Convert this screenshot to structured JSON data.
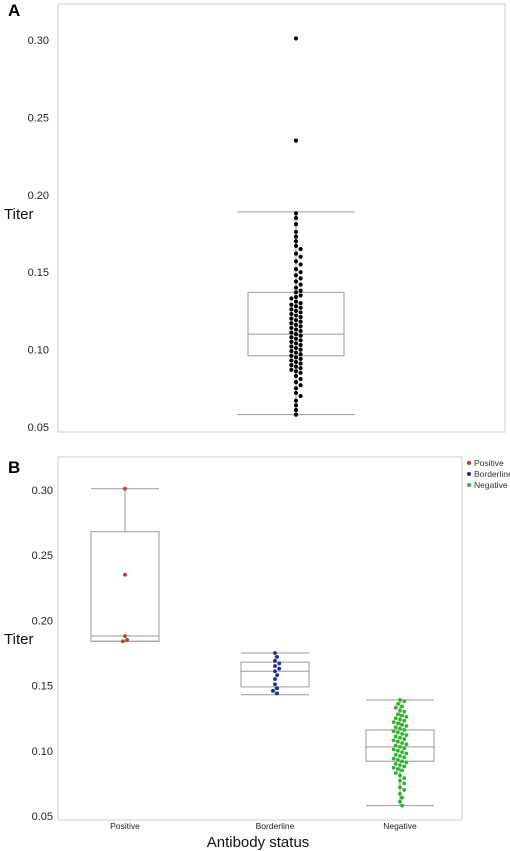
{
  "chart_data": [
    {
      "panel": "A",
      "type": "box-swarm",
      "ylabel": "Titer",
      "xlabel": "",
      "ylim": [
        0.05,
        0.31
      ],
      "yticks": [
        0.05,
        0.1,
        0.15,
        0.2,
        0.25,
        0.3
      ],
      "ytick_labels": [
        "0.05",
        "0.10",
        "0.15",
        "0.20",
        "0.25",
        "0.30"
      ],
      "grid": false,
      "box": {
        "min": 0.058,
        "q1": 0.096,
        "median": 0.11,
        "q3": 0.137,
        "max": 0.189
      },
      "point_color": "#000000",
      "values": [
        0.301,
        0.235,
        0.188,
        0.185,
        0.181,
        0.176,
        0.173,
        0.17,
        0.167,
        0.165,
        0.162,
        0.16,
        0.157,
        0.155,
        0.152,
        0.15,
        0.148,
        0.146,
        0.144,
        0.142,
        0.14,
        0.138,
        0.137,
        0.135,
        0.134,
        0.133,
        0.131,
        0.13,
        0.129,
        0.128,
        0.127,
        0.126,
        0.125,
        0.124,
        0.123,
        0.122,
        0.121,
        0.12,
        0.119,
        0.118,
        0.117,
        0.116,
        0.115,
        0.114,
        0.113,
        0.112,
        0.111,
        0.11,
        0.109,
        0.108,
        0.107,
        0.106,
        0.105,
        0.104,
        0.103,
        0.102,
        0.101,
        0.1,
        0.099,
        0.098,
        0.097,
        0.096,
        0.095,
        0.094,
        0.093,
        0.092,
        0.091,
        0.09,
        0.089,
        0.088,
        0.087,
        0.086,
        0.085,
        0.083,
        0.081,
        0.079,
        0.077,
        0.075,
        0.072,
        0.07,
        0.067,
        0.064,
        0.061,
        0.058
      ]
    },
    {
      "panel": "B",
      "type": "box-swarm",
      "ylabel": "Titer",
      "xlabel": "Antibody status",
      "ylim": [
        0.05,
        0.31
      ],
      "yticks": [
        0.05,
        0.1,
        0.15,
        0.2,
        0.25,
        0.3
      ],
      "ytick_labels": [
        "0.05",
        "0.10",
        "0.15",
        "0.20",
        "0.25",
        "0.30"
      ],
      "grid": false,
      "categories": [
        "Positive",
        "Borderline",
        "Negative"
      ],
      "legend_position": "top-right",
      "series": [
        {
          "name": "Positive",
          "color": "#c0392b",
          "box": {
            "min": 0.184,
            "q1": 0.184,
            "median": 0.188,
            "q3": 0.268,
            "max": 0.301
          },
          "values": [
            0.301,
            0.235,
            0.188,
            0.185,
            0.184
          ]
        },
        {
          "name": "Borderline",
          "color": "#1f2a9a",
          "box": {
            "min": 0.143,
            "q1": 0.149,
            "median": 0.161,
            "q3": 0.168,
            "max": 0.175
          },
          "values": [
            0.175,
            0.172,
            0.169,
            0.167,
            0.165,
            0.163,
            0.161,
            0.158,
            0.155,
            0.151,
            0.148,
            0.146,
            0.144
          ]
        },
        {
          "name": "Negative",
          "color": "#2db52d",
          "box": {
            "min": 0.058,
            "q1": 0.092,
            "median": 0.103,
            "q3": 0.116,
            "max": 0.139
          },
          "values": [
            0.139,
            0.138,
            0.136,
            0.134,
            0.133,
            0.131,
            0.13,
            0.128,
            0.127,
            0.126,
            0.125,
            0.124,
            0.123,
            0.122,
            0.121,
            0.12,
            0.119,
            0.118,
            0.117,
            0.116,
            0.115,
            0.114,
            0.113,
            0.112,
            0.111,
            0.11,
            0.109,
            0.108,
            0.107,
            0.106,
            0.105,
            0.104,
            0.103,
            0.102,
            0.101,
            0.1,
            0.099,
            0.098,
            0.097,
            0.096,
            0.095,
            0.094,
            0.093,
            0.092,
            0.091,
            0.09,
            0.089,
            0.088,
            0.087,
            0.086,
            0.085,
            0.083,
            0.081,
            0.079,
            0.077,
            0.075,
            0.072,
            0.07,
            0.067,
            0.064,
            0.061,
            0.058
          ]
        }
      ]
    }
  ]
}
